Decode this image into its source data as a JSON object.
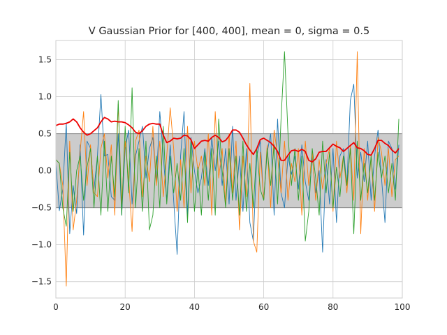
{
  "chart_data": {
    "type": "line",
    "title": "V Gaussian Prior for [400, 400], mean = 0, sigma = 0.5",
    "xlabel": "",
    "ylabel": "",
    "xlim": [
      0,
      100
    ],
    "ylim": [
      -1.72,
      1.76
    ],
    "grid": true,
    "legend": "none",
    "xticks": [
      0,
      20,
      40,
      60,
      80,
      100
    ],
    "xtick_labels": [
      "0",
      "20",
      "40",
      "60",
      "80",
      "100"
    ],
    "yticks": [
      -1.5,
      -1.0,
      -0.5,
      0.0,
      0.5,
      1.0,
      1.5
    ],
    "ytick_labels": [
      "−1.5",
      "−1.0",
      "−0.5",
      "0.0",
      "0.5",
      "1.0",
      "1.5"
    ],
    "band": {
      "y_low": -0.5,
      "y_high": 0.5,
      "color": "#cccccc",
      "edge_color": "#808080"
    },
    "series": [
      {
        "color": "#1f77b4",
        "width": 0.9,
        "values": [
          0.1,
          -0.54,
          -0.25,
          0.65,
          -0.85,
          -0.2,
          -0.58,
          0.35,
          -0.87,
          0.4,
          0.3,
          -0.25,
          0.2,
          1.03,
          0.2,
          0.22,
          -0.35,
          -0.4,
          0.5,
          -0.6,
          0.3,
          0.55,
          -0.45,
          0.2,
          0.4,
          0.6,
          -0.1,
          0.3,
          0.45,
          -0.15,
          0.8,
          0.2,
          -0.4,
          0.35,
          -0.4,
          -1.13,
          0.2,
          0.8,
          -0.6,
          0.45,
          0.0,
          -0.3,
          -0.1,
          0.3,
          -0.2,
          0.45,
          0.0,
          0.4,
          -0.2,
          0.3,
          -0.45,
          0.6,
          -0.4,
          0.2,
          -0.55,
          0.3,
          -0.7,
          -0.95,
          0.2,
          0.4,
          -0.4,
          0.25,
          0.5,
          -0.6,
          0.7,
          -0.3,
          -0.5,
          0.2,
          -0.05,
          0.2,
          -0.25,
          0.35,
          -0.15,
          -0.4,
          0.2,
          -0.3,
          0.0,
          -1.1,
          0.15,
          -0.45,
          0.3,
          -0.7,
          0.2,
          0.3,
          -0.2,
          0.95,
          1.17,
          -0.1,
          0.25,
          -0.15,
          0.4,
          -0.4,
          0.2,
          0.55,
          -0.1,
          -0.7,
          0.4,
          0.3,
          -0.25,
          0.35
        ]
      },
      {
        "color": "#ff7f0e",
        "width": 0.9,
        "values": [
          0.15,
          0.1,
          -0.2,
          -1.56,
          0.4,
          -0.8,
          -0.4,
          0.25,
          0.8,
          -0.2,
          0.35,
          -0.3,
          -0.35,
          0.3,
          0.5,
          -0.1,
          0.35,
          -0.6,
          0.9,
          -0.45,
          0.4,
          -0.1,
          -0.82,
          0.4,
          0.55,
          -0.35,
          0.2,
          -0.15,
          0.6,
          -0.2,
          0.4,
          -0.35,
          0.2,
          0.85,
          0.3,
          -0.55,
          0.15,
          -0.5,
          0.6,
          -0.3,
          0.4,
          0.0,
          0.2,
          -0.2,
          0.5,
          -0.6,
          0.8,
          -0.1,
          0.3,
          -0.45,
          0.5,
          -0.3,
          0.4,
          -0.8,
          0.2,
          -0.35,
          1.18,
          -0.95,
          -1.1,
          0.25,
          -0.4,
          0.35,
          -0.5,
          0.55,
          0.2,
          -0.3,
          0.4,
          -0.4,
          0.1,
          -0.15,
          0.3,
          -0.6,
          0.4,
          -0.2,
          0.25,
          -0.4,
          0.15,
          -0.25,
          0.1,
          0.3,
          -0.55,
          0.4,
          -0.1,
          0.2,
          -0.3,
          0.35,
          -0.4,
          1.61,
          -0.85,
          0.3,
          -0.4,
          0.2,
          -0.55,
          0.45,
          0.25,
          -0.2,
          0.3,
          -0.35,
          0.15,
          0.2
        ]
      },
      {
        "color": "#2ca02c",
        "width": 0.9,
        "values": [
          0.15,
          0.1,
          -0.5,
          -0.75,
          0.25,
          -0.55,
          0.0,
          0.2,
          -0.4,
          0.05,
          0.3,
          -0.5,
          0.2,
          -0.6,
          0.4,
          -0.55,
          0.2,
          -0.35,
          0.95,
          -0.6,
          0.6,
          -0.3,
          1.12,
          -0.5,
          0.3,
          -0.55,
          0.4,
          -0.8,
          -0.6,
          0.2,
          -0.5,
          0.6,
          -0.45,
          0.2,
          -0.3,
          0.1,
          -0.4,
          0.3,
          -0.7,
          0.4,
          -0.55,
          0.05,
          -0.6,
          0.25,
          -0.4,
          0.3,
          -0.6,
          0.7,
          0.0,
          -0.5,
          0.3,
          -0.4,
          0.2,
          -0.6,
          0.4,
          -0.55,
          0.1,
          -0.5,
          0.3,
          -0.25,
          -0.4,
          0.3,
          -0.2,
          0.35,
          -0.45,
          0.7,
          1.61,
          0.5,
          -0.2,
          0.3,
          -0.4,
          0.2,
          -0.95,
          -0.55,
          0.3,
          -0.1,
          -0.6,
          0.4,
          -0.3,
          0.25,
          -0.5,
          0.05,
          -0.35,
          0.2,
          -0.2,
          0.3,
          -0.85,
          0.4,
          -0.4,
          0.1,
          -0.3,
          0.2,
          -0.4,
          0.25,
          -0.1,
          0.2,
          -0.3,
          0.1,
          -0.4,
          0.7
        ]
      },
      {
        "color": "#ee0000",
        "width": 1.8,
        "values": [
          0.61,
          0.63,
          0.63,
          0.64,
          0.66,
          0.7,
          0.66,
          0.58,
          0.52,
          0.48,
          0.5,
          0.54,
          0.58,
          0.66,
          0.72,
          0.7,
          0.66,
          0.67,
          0.66,
          0.66,
          0.65,
          0.62,
          0.58,
          0.52,
          0.5,
          0.54,
          0.6,
          0.63,
          0.64,
          0.63,
          0.63,
          0.48,
          0.38,
          0.4,
          0.44,
          0.43,
          0.44,
          0.48,
          0.47,
          0.42,
          0.3,
          0.35,
          0.4,
          0.41,
          0.4,
          0.45,
          0.48,
          0.45,
          0.39,
          0.41,
          0.47,
          0.55,
          0.55,
          0.52,
          0.44,
          0.35,
          0.28,
          0.22,
          0.3,
          0.42,
          0.44,
          0.41,
          0.38,
          0.33,
          0.26,
          0.14,
          0.14,
          0.21,
          0.27,
          0.28,
          0.26,
          0.29,
          0.26,
          0.14,
          0.12,
          0.16,
          0.25,
          0.26,
          0.26,
          0.31,
          0.36,
          0.33,
          0.31,
          0.26,
          0.3,
          0.34,
          0.38,
          0.31,
          0.3,
          0.27,
          0.22,
          0.21,
          0.3,
          0.41,
          0.41,
          0.37,
          0.34,
          0.28,
          0.24,
          0.3
        ]
      }
    ]
  }
}
